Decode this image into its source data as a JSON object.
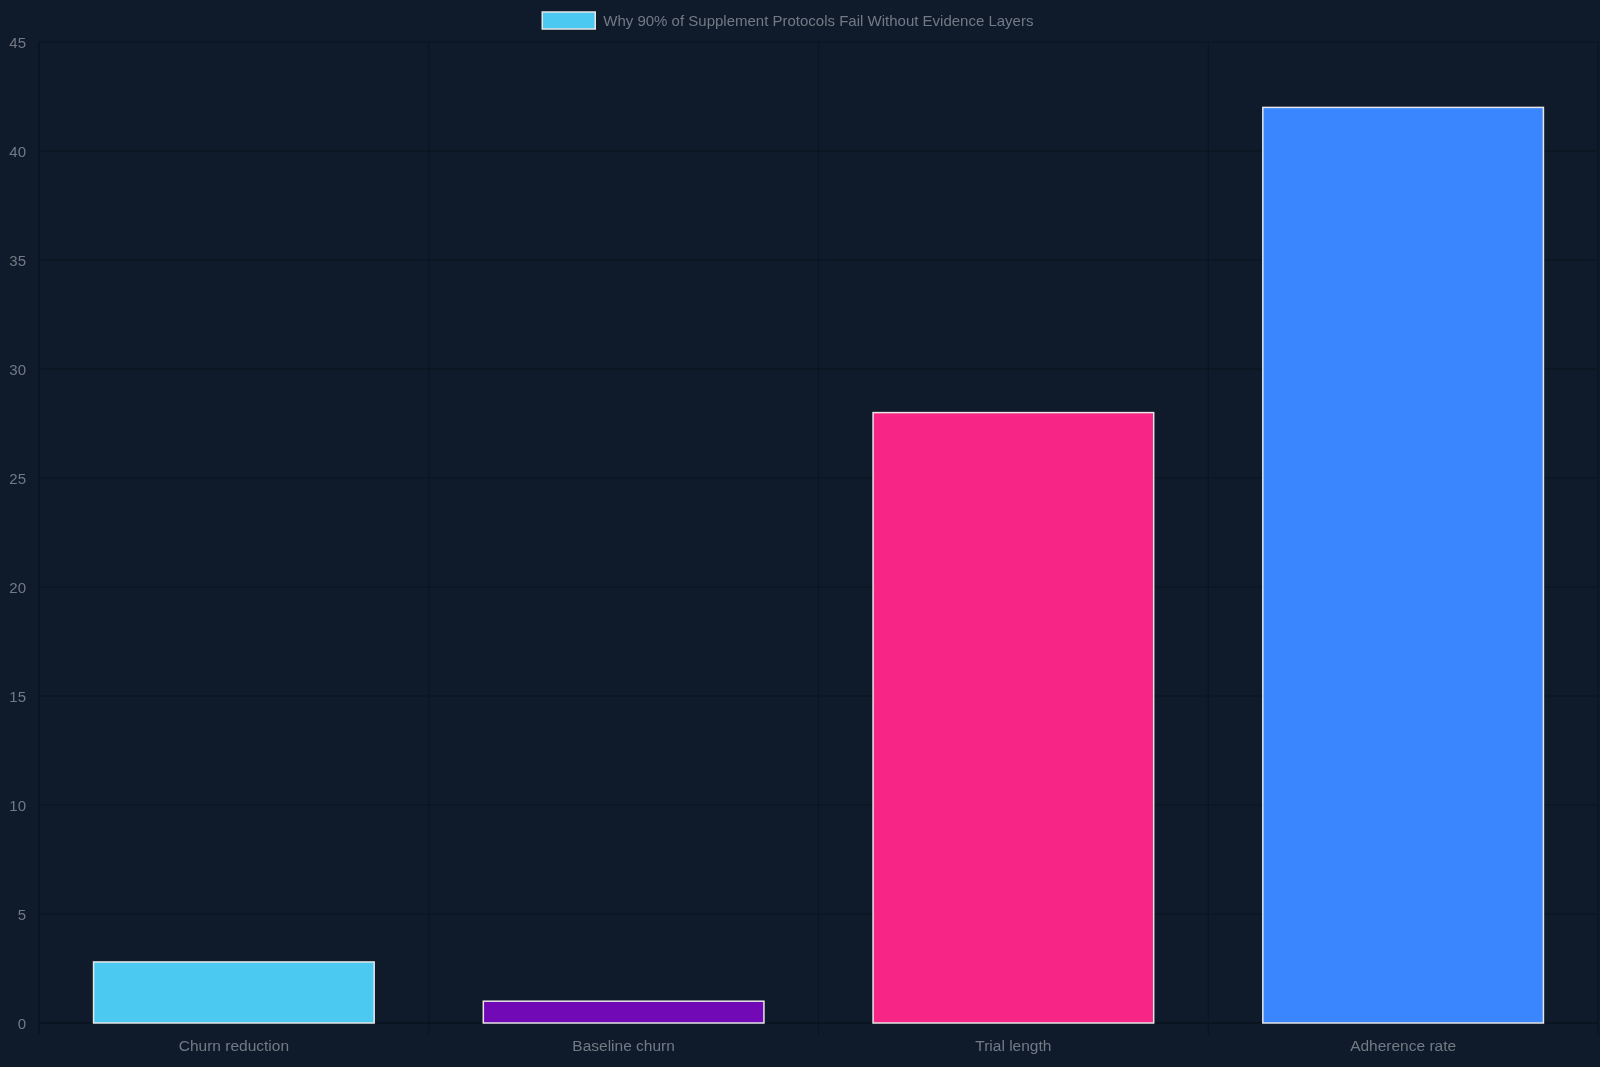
{
  "chart_data": {
    "type": "bar",
    "categories": [
      "Churn reduction",
      "Baseline churn",
      "Trial length",
      "Adherence rate"
    ],
    "series": [
      {
        "name": "Why 90% of Supplement Protocols Fail Without Evidence Layers",
        "colors": [
          "#4cc9f0",
          "#7209b7",
          "#f72585",
          "#3a86ff"
        ],
        "values": [
          2.8,
          1,
          28,
          42
        ]
      }
    ],
    "ylim": [
      0,
      45
    ],
    "yticks": [
      0,
      5,
      10,
      15,
      20,
      25,
      30,
      35,
      40,
      45
    ],
    "grid": true,
    "legend": "top"
  }
}
